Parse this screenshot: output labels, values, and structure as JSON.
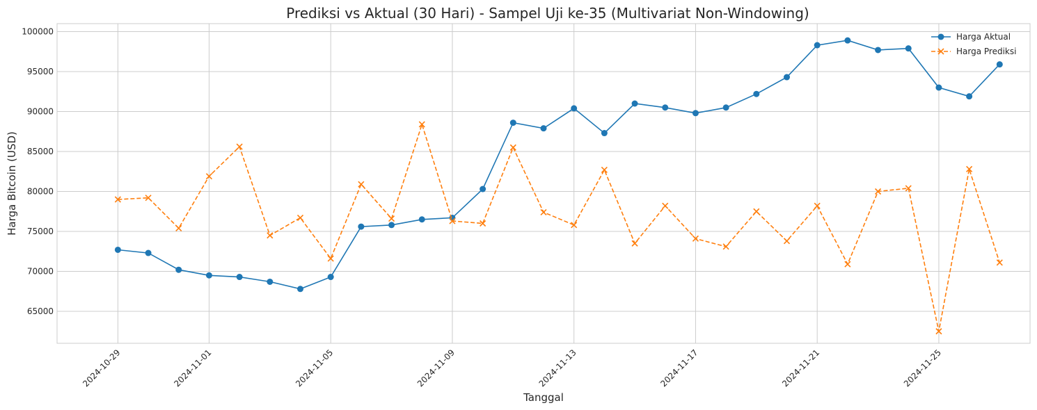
{
  "chart_data": {
    "type": "line",
    "title": "Prediksi vs Aktual (30 Hari) - Sampel Uji ke-35 (Multivariat Non-Windowing)",
    "xlabel": "Tanggal",
    "ylabel": "Harga Bitcoin (USD)",
    "x": [
      "2024-10-29",
      "2024-10-30",
      "2024-10-31",
      "2024-11-01",
      "2024-11-02",
      "2024-11-03",
      "2024-11-04",
      "2024-11-05",
      "2024-11-06",
      "2024-11-07",
      "2024-11-08",
      "2024-11-09",
      "2024-11-10",
      "2024-11-11",
      "2024-11-12",
      "2024-11-13",
      "2024-11-14",
      "2024-11-15",
      "2024-11-16",
      "2024-11-17",
      "2024-11-18",
      "2024-11-19",
      "2024-11-20",
      "2024-11-21",
      "2024-11-22",
      "2024-11-23",
      "2024-11-24",
      "2024-11-25",
      "2024-11-26",
      "2024-11-27"
    ],
    "xticks": [
      "2024-10-29",
      "2024-11-01",
      "2024-11-05",
      "2024-11-09",
      "2024-11-13",
      "2024-11-17",
      "2024-11-21",
      "2024-11-25"
    ],
    "xlim": [
      "2024-10-27",
      "2024-11-28"
    ],
    "yticks": [
      65000,
      70000,
      75000,
      80000,
      85000,
      90000,
      95000,
      100000
    ],
    "ylim": [
      61000,
      101000
    ],
    "grid": true,
    "legend_position": "top-right",
    "series": [
      {
        "name": "Harga Aktual",
        "color": "#1f77b4",
        "line_style": "solid",
        "marker": "circle",
        "values": [
          72700,
          72300,
          70200,
          69500,
          69300,
          68700,
          67800,
          69300,
          75600,
          75800,
          76500,
          76700,
          80300,
          88600,
          87900,
          90400,
          87300,
          91000,
          90500,
          89800,
          90500,
          92200,
          94300,
          98300,
          98900,
          97700,
          97900,
          93000,
          91900,
          95900
        ]
      },
      {
        "name": "Harga Prediksi",
        "color": "#ff7f0e",
        "line_style": "dashed",
        "marker": "x",
        "values": [
          79000,
          79200,
          75400,
          81900,
          85600,
          74500,
          76700,
          71600,
          80900,
          76600,
          88400,
          76300,
          76000,
          85500,
          77400,
          75800,
          82700,
          73500,
          78200,
          74100,
          73100,
          77500,
          73800,
          78200,
          70900,
          80000,
          80400,
          62500,
          82800,
          71100
        ]
      }
    ]
  }
}
